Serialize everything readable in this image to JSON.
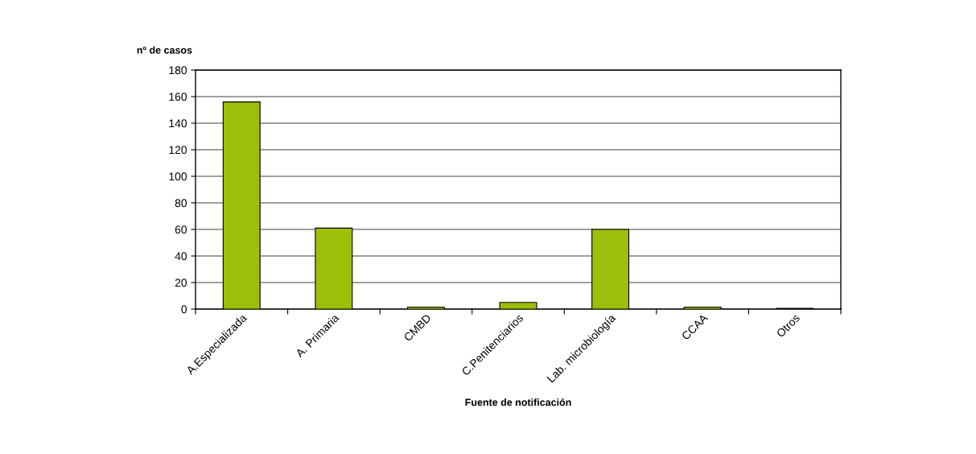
{
  "chart_data": {
    "type": "bar",
    "ylabel": "nº de casos",
    "xlabel": "Fuente de notificación",
    "categories": [
      "A.Especializada",
      "A. Primaria",
      "CMBD",
      "C.Penitenciarios",
      "Lab. microbiología",
      "CCAA",
      "Otros"
    ],
    "values": [
      156,
      61,
      1.5,
      5,
      60,
      1.5,
      0.5
    ],
    "color": "#9bbf0a",
    "ylim": [
      0,
      180
    ],
    "yticks": [
      0,
      20,
      40,
      60,
      80,
      100,
      120,
      140,
      160,
      180
    ],
    "grid": "y"
  }
}
